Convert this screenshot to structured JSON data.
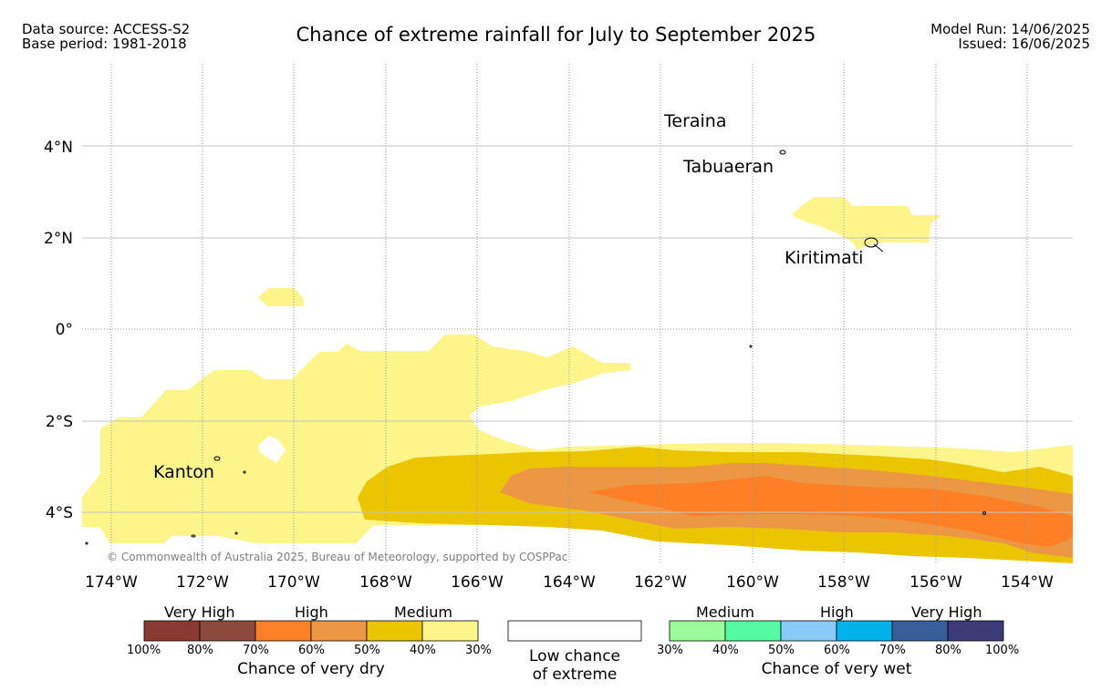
{
  "header": {
    "data_source": "Data source: ACCESS-S2",
    "base_period": "Base period: 1981-2018",
    "title": "Chance of extreme rainfall for July to September 2025",
    "model_run": "Model Run: 14/06/2025",
    "issued": "Issued: 16/06/2025"
  },
  "map": {
    "longitude_ticks": [
      "174°W",
      "172°W",
      "170°W",
      "168°W",
      "166°W",
      "164°W",
      "162°W",
      "160°W",
      "158°W",
      "156°W",
      "154°W"
    ],
    "latitude_ticks": [
      "4°N",
      "2°N",
      "0°",
      "2°S",
      "4°S"
    ],
    "places": [
      {
        "name": "Teraina"
      },
      {
        "name": "Tabuaeran"
      },
      {
        "name": "Kiritimati"
      },
      {
        "name": "Kanton"
      }
    ],
    "copyright": "© Commonwealth of Australia 2025, Bureau of Meteorology, supported by COSPPac",
    "colors": {
      "dry_30_40": "#fdf58a",
      "dry_40_50": "#ebc500",
      "dry_50_60": "#ec9744",
      "dry_60_70": "#ff7f27",
      "gridline": "#bfbfbf"
    }
  },
  "legend": {
    "dry": {
      "levels": [
        "Very High",
        "High",
        "Medium"
      ],
      "colors": [
        "#8b3a33",
        "#8b4a3c",
        "#ff7f27",
        "#ec9744",
        "#ebc500",
        "#fdf58a"
      ],
      "percents": [
        "100%",
        "80%",
        "70%",
        "60%",
        "50%",
        "40%",
        "30%"
      ],
      "caption": "Chance of very dry"
    },
    "low": {
      "caption_line1": "Low chance",
      "caption_line2": "of extreme"
    },
    "wet": {
      "levels": [
        "Medium",
        "High",
        "Very High"
      ],
      "colors": [
        "#9bfc9b",
        "#55fba2",
        "#87cbfa",
        "#00b2ec",
        "#3a5e9a",
        "#3d3a78"
      ],
      "percents": [
        "30%",
        "40%",
        "50%",
        "60%",
        "70%",
        "80%",
        "100%"
      ],
      "caption": "Chance of very wet"
    }
  }
}
